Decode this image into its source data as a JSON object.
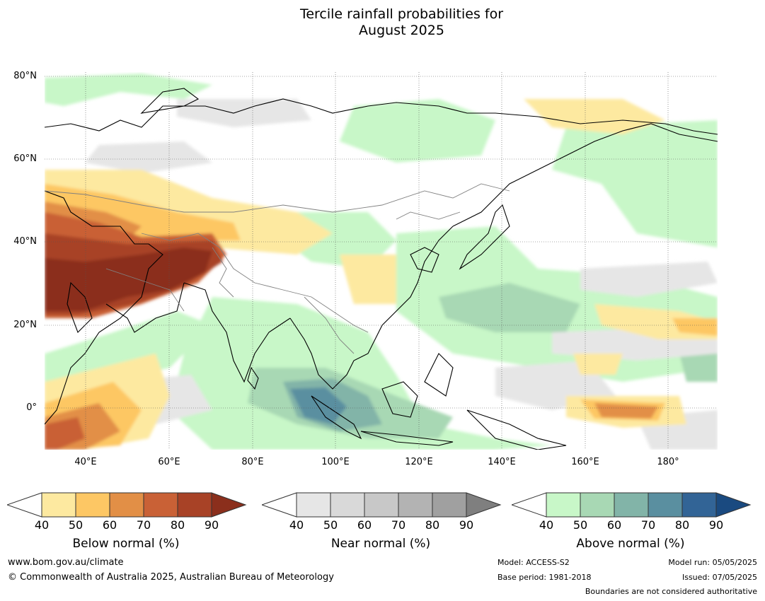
{
  "title": {
    "line1": "Tercile rainfall probabilities for",
    "line2": "August 2025"
  },
  "map": {
    "lat_labels": [
      "80°N",
      "60°N",
      "40°N",
      "20°N",
      "0°"
    ],
    "lon_labels": [
      "40°E",
      "60°E",
      "80°E",
      "100°E",
      "120°E",
      "140°E",
      "160°E",
      "180°"
    ],
    "lon_range": [
      30,
      192
    ],
    "lat_range": [
      -10,
      81
    ]
  },
  "legends": {
    "below": {
      "title": "Below normal (%)",
      "ticks": [
        "40",
        "50",
        "60",
        "70",
        "80",
        "90"
      ],
      "colors": [
        "#fde9a0",
        "#fdc764",
        "#e28f46",
        "#c96136",
        "#a84226",
        "#8b2f1c"
      ]
    },
    "near": {
      "title": "Near normal (%)",
      "ticks": [
        "40",
        "50",
        "60",
        "70",
        "80",
        "90"
      ],
      "colors": [
        "#e6e6e6",
        "#d9d9d9",
        "#c8c8c8",
        "#b3b3b3",
        "#a0a0a0",
        "#7f7f7f"
      ]
    },
    "above": {
      "title": "Above normal (%)",
      "ticks": [
        "40",
        "50",
        "60",
        "70",
        "80",
        "90"
      ],
      "colors": [
        "#c8f7c8",
        "#a8d8b4",
        "#82b4a8",
        "#5a8fa0",
        "#326496",
        "#1a4a80"
      ]
    }
  },
  "footer": {
    "website": "www.bom.gov.au/climate",
    "copyright": "© Commonwealth of Australia 2025, Australian Bureau of Meteorology",
    "model": "Model: ACCESS-S2",
    "base_period": "Base period: 1981-2018",
    "model_run": "Model run: 05/05/2025",
    "issued": "Issued: 07/05/2025",
    "boundaries": "Boundaries are not considered authoritative"
  }
}
